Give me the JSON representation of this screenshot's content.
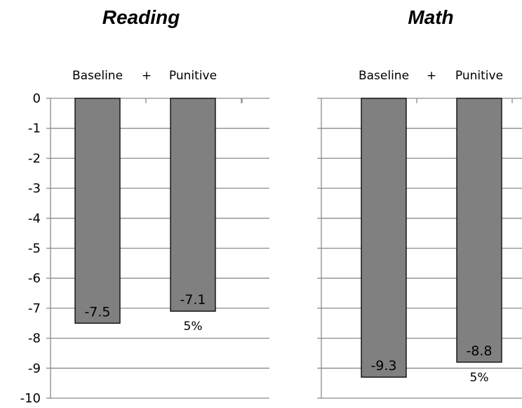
{
  "chart_data": [
    {
      "type": "bar",
      "title": "Reading",
      "categories": [
        "Baseline",
        "Punitive"
      ],
      "separator": "+",
      "values": [
        -7.5,
        -7.1
      ],
      "data_labels": [
        "-7.5",
        "-7.1"
      ],
      "annotations": [
        "",
        "5%"
      ],
      "ylim": [
        -10,
        0
      ],
      "yticks": [
        0,
        -1,
        -2,
        -3,
        -4,
        -5,
        -6,
        -7,
        -8,
        -9,
        -10
      ],
      "ytick_labels": [
        "0",
        "-1",
        "-2",
        "-3",
        "-4",
        "-5",
        "-6",
        "-7",
        "-8",
        "-9",
        "-10"
      ],
      "grid": true,
      "color": "#808080"
    },
    {
      "type": "bar",
      "title": "Math",
      "categories": [
        "Baseline",
        "Punitive"
      ],
      "separator": "+",
      "values": [
        -9.3,
        -8.8
      ],
      "data_labels": [
        "-9.3",
        "-8.8"
      ],
      "annotations": [
        "",
        "5%"
      ],
      "ylim": [
        -10,
        0
      ],
      "grid": true,
      "color": "#808080"
    }
  ]
}
